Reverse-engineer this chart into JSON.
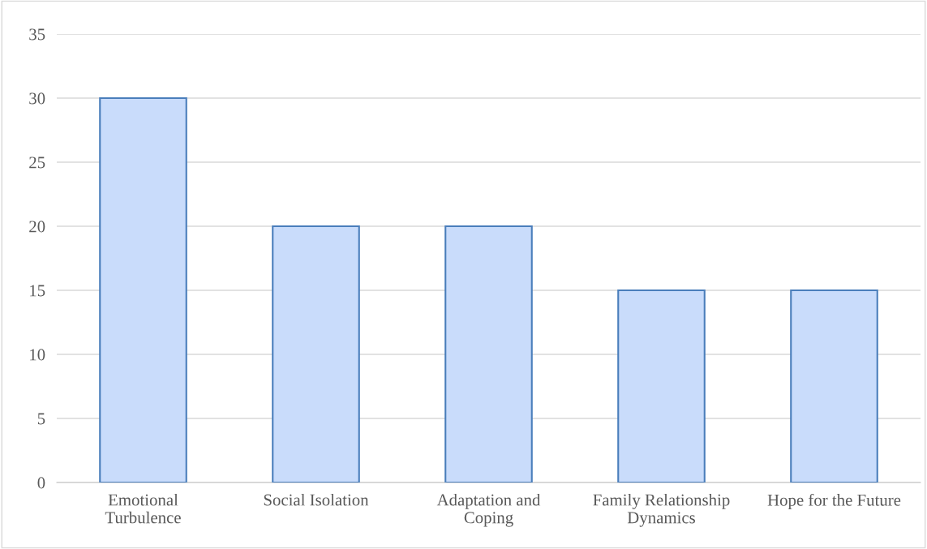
{
  "chart_data": {
    "type": "bar",
    "categories": [
      "Emotional\nTurbulence",
      "Social Isolation",
      "Adaptation and\nCoping",
      "Family Relationship\nDynamics",
      "Hope for the Future"
    ],
    "values": [
      30,
      20,
      20,
      15,
      15
    ],
    "color": "#c9dcfb",
    "ylim": [
      0,
      35
    ],
    "yticks": [
      0,
      5,
      10,
      15,
      20,
      25,
      30,
      35
    ],
    "grid": "y",
    "legend": false
  }
}
